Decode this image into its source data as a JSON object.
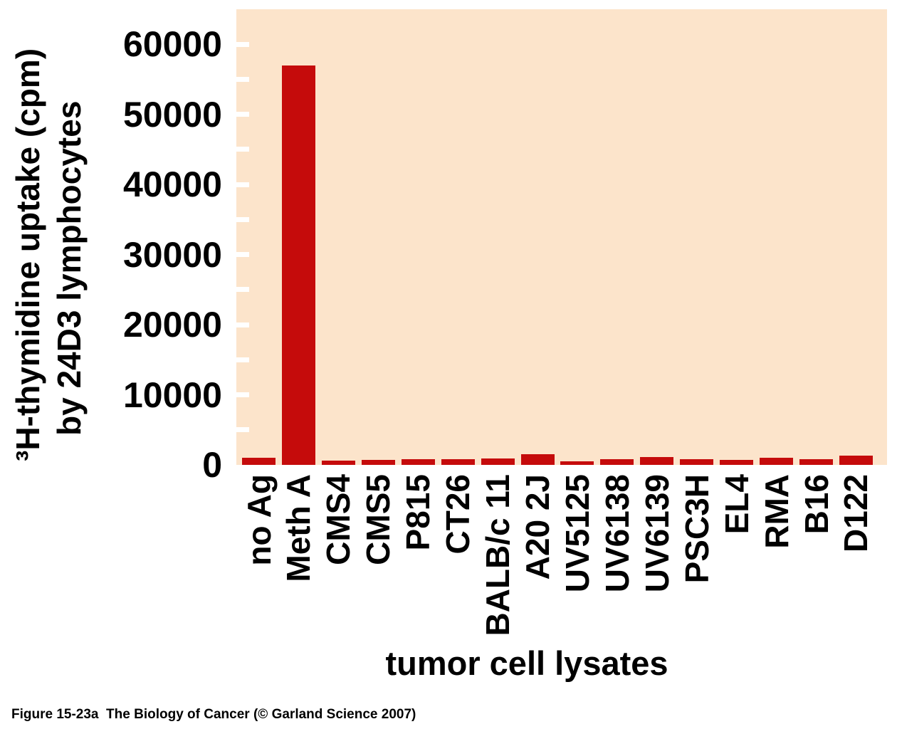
{
  "figure": {
    "caption": "Figure 15-23a  The Biology of Cancer (© Garland Science 2007)"
  },
  "chart_data": {
    "type": "bar",
    "title": "",
    "xlabel": "tumor cell lysates",
    "ylabel_line1": "³H-thymidine uptake (cpm)",
    "ylabel_line2": "by 24D3 lymphocytes",
    "categories": [
      "no Ag",
      "Meth A",
      "CMS4",
      "CMS5",
      "P815",
      "CT26",
      "BALB/c 11",
      "A20 2J",
      "UV5125",
      "UV6138",
      "UV6139",
      "PSC3H",
      "EL4",
      "RMA",
      "B16",
      "D122"
    ],
    "values": [
      1000,
      57000,
      600,
      700,
      800,
      800,
      900,
      1500,
      500,
      800,
      1100,
      800,
      700,
      1000,
      800,
      1300
    ],
    "ylim": [
      0,
      65000
    ],
    "yticks_labeled": [
      0,
      10000,
      20000,
      30000,
      40000,
      50000,
      60000
    ],
    "ytick_minor_interval": 5000,
    "grid": false,
    "legend": "none",
    "bar_color": "#c50b0b",
    "plot_bg_color": "#fce4cb",
    "tick_color": "#ffffff"
  }
}
